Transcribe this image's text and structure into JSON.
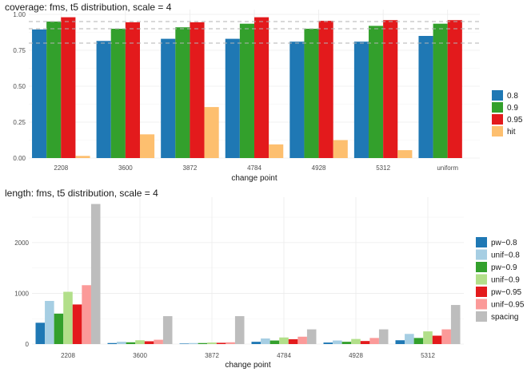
{
  "chart_data": [
    {
      "type": "bar",
      "title": "coverage: fms, t5 distribution, scale = 4",
      "xlabel": "change point",
      "ylabel": "",
      "ylim": [
        0,
        1.0
      ],
      "yticks": [
        "0.00",
        "0.25",
        "0.50",
        "0.75",
        "1.00"
      ],
      "reference_lines": [
        0.8,
        0.9,
        0.95
      ],
      "grid": true,
      "legend_position": "right",
      "categories": [
        "2208",
        "3600",
        "3872",
        "4784",
        "4928",
        "5312",
        "uniform"
      ],
      "series": [
        {
          "name": "0.8",
          "color": "#1f78b4",
          "values": [
            0.895,
            0.815,
            0.83,
            0.83,
            0.81,
            0.81,
            0.85
          ]
        },
        {
          "name": "0.9",
          "color": "#33a02c",
          "values": [
            0.95,
            0.9,
            0.91,
            0.935,
            0.9,
            0.92,
            0.935
          ]
        },
        {
          "name": "0.95",
          "color": "#e31a1c",
          "values": [
            0.98,
            0.945,
            0.945,
            0.98,
            0.955,
            0.96,
            0.96
          ]
        },
        {
          "name": "hit",
          "color": "#fdbf6f",
          "values": [
            0.015,
            0.165,
            0.355,
            0.095,
            0.125,
            0.055,
            null
          ]
        }
      ]
    },
    {
      "type": "bar",
      "title": "length: fms, t5 distribution, scale = 4",
      "xlabel": "change point",
      "ylabel": "",
      "ylim": [
        0,
        2800
      ],
      "yticks": [
        "0",
        "1000",
        "2000"
      ],
      "grid": true,
      "legend_position": "right",
      "categories": [
        "2208",
        "3600",
        "3872",
        "4784",
        "4928",
        "5312"
      ],
      "series": [
        {
          "name": "pw−0.8",
          "color": "#1f78b4",
          "values": [
            420,
            20,
            10,
            45,
            30,
            75
          ]
        },
        {
          "name": "unif−0.8",
          "color": "#a6cee3",
          "values": [
            850,
            45,
            20,
            110,
            70,
            200
          ]
        },
        {
          "name": "pw−0.9",
          "color": "#33a02c",
          "values": [
            600,
            35,
            20,
            70,
            45,
            120
          ]
        },
        {
          "name": "unif−0.9",
          "color": "#b2df8a",
          "values": [
            1030,
            75,
            30,
            130,
            100,
            250
          ]
        },
        {
          "name": "pw−0.95",
          "color": "#e31a1c",
          "values": [
            780,
            55,
            25,
            95,
            60,
            165
          ]
        },
        {
          "name": "unif−0.95",
          "color": "#fb9a99",
          "values": [
            1160,
            85,
            35,
            145,
            120,
            290
          ]
        },
        {
          "name": "spacing",
          "color": "#bdbdbd",
          "values": [
            2760,
            550,
            550,
            290,
            290,
            770
          ]
        }
      ]
    }
  ]
}
